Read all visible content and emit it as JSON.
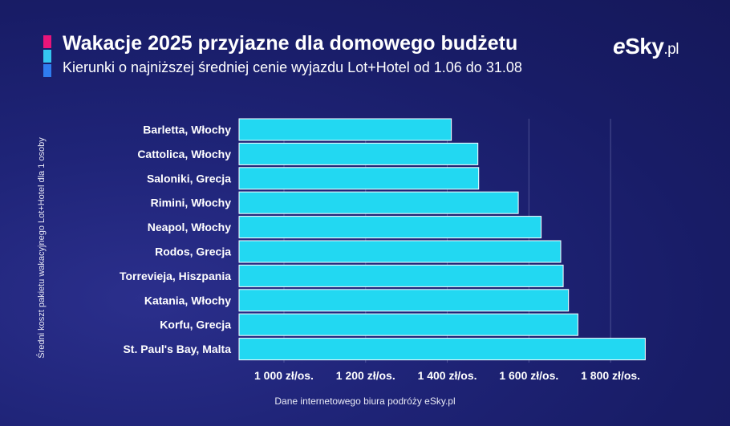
{
  "header": {
    "title": "Wakacje 2025 przyjazne dla domowego budżetu",
    "subtitle": "Kierunki o najniższej średniej cenie wyjazdu Lot+Hotel od 1.06 do 31.08",
    "accent_colors": [
      "#e8157a",
      "#35c6f0",
      "#2f7df0"
    ]
  },
  "logo": {
    "prefix": "e",
    "name": "Sky",
    "tld": ".pl"
  },
  "footer": {
    "source": "Dane internetowego biura podróży eSky.pl"
  },
  "colors": {
    "bar": "#22d8f2",
    "bar_border": "#ffffff",
    "text": "#ffffff",
    "grid": "#8a8fc4"
  },
  "chart_data": {
    "type": "bar",
    "orientation": "horizontal",
    "title": "Wakacje 2025 przyjazne dla domowego budżetu",
    "subtitle": "Kierunki o najniższej średniej cenie wyjazdu Lot+Hotel od 1.06 do 31.08",
    "ylabel": "Średni koszt pakietu wakacyjnego Lot+Hotel dla 1 osoby",
    "xlabel": "",
    "categories": [
      "Barletta, Włochy",
      "Cattolica, Włochy",
      "Saloniki, Grecja",
      "Rimini, Włochy",
      "Neapol, Włochy",
      "Rodos, Grecja",
      "Torrevieja, Hiszpania",
      "Katania, Włochy",
      "Korfu, Grecja",
      "St. Paul's Bay, Malta"
    ],
    "values": [
      1410,
      1475,
      1477,
      1574,
      1630,
      1678,
      1684,
      1697,
      1720,
      1885
    ],
    "xlim": [
      890,
      1900
    ],
    "ticks": [
      1000,
      1200,
      1400,
      1600,
      1800
    ],
    "tick_labels": [
      "1 000 zł/os.",
      "1 200 zł/os.",
      "1 400 zł/os.",
      "1 600 zł/os.",
      "1 800 zł/os."
    ],
    "grid": true,
    "legend": "none"
  }
}
